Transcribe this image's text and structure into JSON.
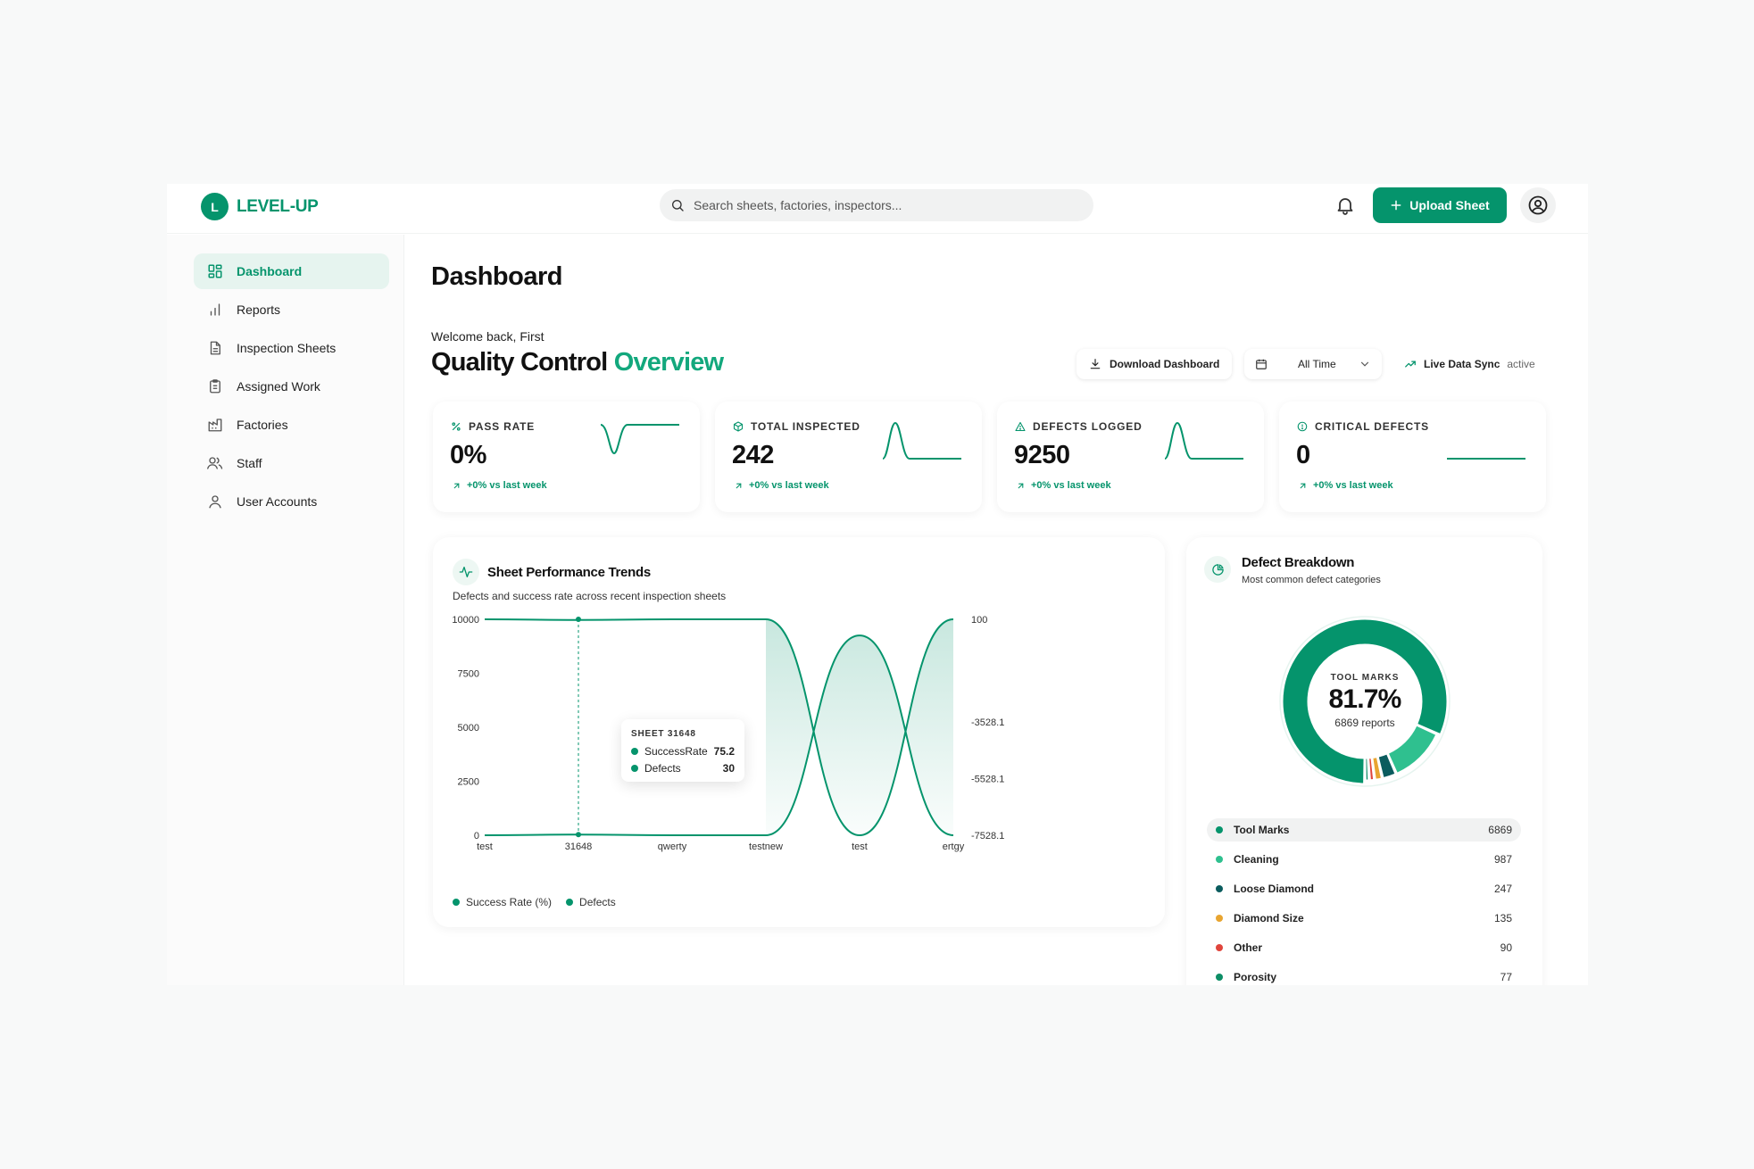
{
  "brand": {
    "initial": "L",
    "name": "LEVEL-UP"
  },
  "search": {
    "placeholder": "Search sheets, factories, inspectors..."
  },
  "header": {
    "upload_label": "Upload Sheet"
  },
  "sidebar": {
    "items": [
      {
        "label": "Dashboard",
        "icon": "dashboard-icon",
        "active": true
      },
      {
        "label": "Reports",
        "icon": "bar-chart-icon"
      },
      {
        "label": "Inspection Sheets",
        "icon": "document-icon"
      },
      {
        "label": "Assigned Work",
        "icon": "clipboard-icon"
      },
      {
        "label": "Factories",
        "icon": "factory-icon"
      },
      {
        "label": "Staff",
        "icon": "users-icon"
      },
      {
        "label": "User Accounts",
        "icon": "user-icon"
      }
    ]
  },
  "main": {
    "title": "Dashboard",
    "welcome": "Welcome back, First",
    "heading": "Quality Control",
    "heading_accent": "Overview",
    "download_label": "Download Dashboard",
    "time_range": "All Time",
    "sync_label": "Live Data Sync",
    "sync_state": "active"
  },
  "kpis": [
    {
      "label": "PASS RATE",
      "icon": "percent-icon",
      "value": "0%",
      "delta": "+0% vs last week"
    },
    {
      "label": "TOTAL INSPECTED",
      "icon": "box-icon",
      "value": "242",
      "delta": "+0% vs last week"
    },
    {
      "label": "DEFECTS LOGGED",
      "icon": "warning-icon",
      "value": "9250",
      "delta": "+0% vs last week"
    },
    {
      "label": "CRITICAL DEFECTS",
      "icon": "info-icon",
      "value": "0",
      "delta": "+0% vs last week"
    }
  ],
  "trends": {
    "title": "Sheet Performance Trends",
    "subtitle": "Defects and success rate across recent inspection sheets",
    "tooltip": {
      "title": "SHEET 31648",
      "rows": [
        {
          "label": "SuccessRate",
          "value": "75.2"
        },
        {
          "label": "Defects",
          "value": "30"
        }
      ]
    }
  },
  "defects": {
    "title": "Defect Breakdown",
    "subtitle": "Most common defect categories",
    "center_label": "TOOL MARKS",
    "center_value": "81.7%",
    "center_sub": "6869 reports",
    "items": [
      {
        "label": "Tool Marks",
        "count": "6869",
        "color": "#05946c"
      },
      {
        "label": "Cleaning",
        "count": "987",
        "color": "#2fc08f"
      },
      {
        "label": "Loose Diamond",
        "count": "247",
        "color": "#0b5c5e"
      },
      {
        "label": "Diamond Size",
        "count": "135",
        "color": "#e8a531"
      },
      {
        "label": "Other",
        "count": "90",
        "color": "#e0453c"
      },
      {
        "label": "Porosity",
        "count": "77",
        "color": "#0d8e66"
      }
    ]
  },
  "chart_data": [
    {
      "type": "line",
      "categories": [
        "test",
        "31648",
        "qwerty",
        "testnew",
        "test",
        "ertgy"
      ],
      "left_axis": {
        "ticks": [
          "10000",
          "7500",
          "5000",
          "2500",
          "0"
        ],
        "ylim": [
          0,
          10000
        ]
      },
      "right_axis": {
        "ticks": [
          "100",
          "-3528.1",
          "-5528.1",
          "-7528.1"
        ]
      },
      "series": [
        {
          "name": "Success Rate (%)",
          "values": [
            100,
            75.2,
            100,
            100,
            -7528.1,
            100
          ]
        },
        {
          "name": "Defects",
          "values": [
            0,
            30,
            0,
            0,
            9250,
            0
          ]
        }
      ],
      "legend": [
        "Success Rate (%)",
        "Defects"
      ],
      "color": "#05946c"
    },
    {
      "type": "pie",
      "labels": [
        "Tool Marks",
        "Cleaning",
        "Loose Diamond",
        "Diamond Size",
        "Other",
        "Porosity"
      ],
      "values": [
        6869,
        987,
        247,
        135,
        90,
        77
      ],
      "colors": [
        "#05946c",
        "#2fc08f",
        "#0b5c5e",
        "#e8a531",
        "#e0453c",
        "#0d8e66"
      ]
    }
  ]
}
